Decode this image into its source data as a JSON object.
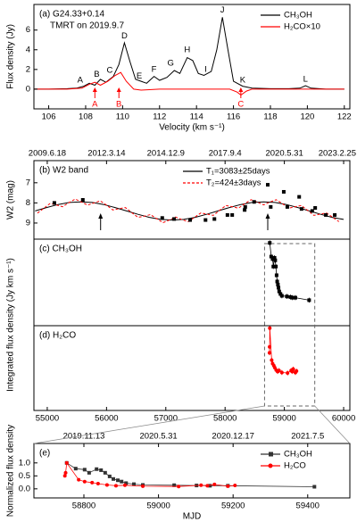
{
  "chart_data": [
    {
      "type": "line",
      "title": "(a) G24.33+0.14",
      "subtitle": "TMRT on 2019.9.7",
      "xlabel": "Velocity (km s⁻¹)",
      "ylabel": "Flux density (Jy)",
      "xlim": [
        105.2,
        122.3
      ],
      "xticks": [
        106,
        108,
        110,
        112,
        114,
        116,
        118,
        120,
        122
      ],
      "ylim": [
        -2,
        8.6
      ],
      "yticks": [
        0,
        2,
        4,
        6
      ],
      "legend": "upper right",
      "series": [
        {
          "name": "CH₃OH",
          "color": "#000000",
          "x": [
            105,
            106,
            107,
            107.5,
            107.9,
            108.2,
            108.5,
            108.8,
            109.1,
            109.5,
            109.8,
            110.1,
            110.4,
            110.7,
            111.0,
            111.3,
            111.7,
            112.0,
            112.4,
            112.8,
            113.1,
            113.5,
            113.8,
            114.1,
            114.4,
            114.8,
            115.1,
            115.4,
            115.7,
            116.0,
            116.5,
            117,
            118,
            119,
            119.6,
            119.9,
            120.2,
            121,
            122
          ],
          "values": [
            0,
            0,
            0.05,
            0.1,
            0.3,
            0.6,
            0.4,
            1.0,
            0.7,
            1.3,
            2.5,
            4.7,
            2.8,
            1.0,
            0.8,
            0.6,
            1.3,
            0.9,
            1.2,
            1.9,
            1.6,
            3.2,
            2.9,
            1.6,
            1.4,
            1.8,
            4.0,
            7.3,
            4.0,
            0.8,
            0.3,
            0.1,
            0.05,
            0.05,
            0.1,
            0.35,
            0.1,
            0,
            0
          ]
        },
        {
          "name": "H₂CO×10",
          "color": "#ff0000",
          "x": [
            105,
            106,
            107,
            107.8,
            108.2,
            108.5,
            108.8,
            109.2,
            109.6,
            109.9,
            110.2,
            110.6,
            111,
            112,
            113,
            114,
            115,
            115.8,
            116.2,
            116.4,
            116.7,
            117,
            118,
            120,
            122
          ],
          "values": [
            0,
            0,
            0,
            0.1,
            0.5,
            0.7,
            0.4,
            0.8,
            1.4,
            1.7,
            0.8,
            0,
            -0.1,
            0,
            0,
            0,
            0,
            0,
            -0.3,
            -0.6,
            -0.2,
            0,
            0,
            0,
            0
          ]
        }
      ],
      "peak_labels": [
        "A",
        "B",
        "C",
        "D",
        "E",
        "F",
        "G",
        "H",
        "I",
        "J",
        "K",
        "L"
      ],
      "h2co_labels": [
        "A",
        "B",
        "C"
      ]
    },
    {
      "type": "scatter",
      "title": "(b) W2 band",
      "ylabel": "W2 (mag)",
      "xlim": [
        54775,
        60105
      ],
      "x2ticks": [
        {
          "value": 55000,
          "label": "2009.6.18"
        },
        {
          "value": 56000,
          "label": "2012.3.14"
        },
        {
          "value": 57000,
          "label": "2014.12.9"
        },
        {
          "value": 58000,
          "label": "2017.9.4"
        },
        {
          "value": 59000,
          "label": "2020.5.31"
        },
        {
          "value": 60000,
          "label": "2023.2.25"
        }
      ],
      "ylim": [
        9.8,
        5.9
      ],
      "yticks": [
        7,
        8,
        9
      ],
      "legend": "upper center",
      "points": {
        "color": "#000000",
        "x": [
          55120,
          55600,
          56940,
          57140,
          57410,
          57670,
          57820,
          58040,
          58120,
          58330,
          58340,
          58490,
          58720,
          58770,
          58990,
          59050,
          59250,
          59290,
          59470,
          59520,
          59700,
          59850
        ],
        "values": [
          8.0,
          7.85,
          8.75,
          8.8,
          8.85,
          8.85,
          8.8,
          8.6,
          8.6,
          8.35,
          8.2,
          7.95,
          7.1,
          8.2,
          7.45,
          8.2,
          7.7,
          8.3,
          8.4,
          8.25,
          8.6,
          8.6
        ]
      },
      "arrows": [
        55900,
        58720
      ],
      "series": [
        {
          "name": "T₁=3083±25days",
          "color": "#000000",
          "dash": false,
          "x": [
            54796,
            54989,
            55181,
            55374,
            55567,
            55760,
            55952,
            56145,
            56338,
            56530,
            56723,
            56916,
            57108,
            57301,
            57494,
            57687,
            57879,
            58072,
            58265,
            58457,
            58650,
            58843,
            59035,
            59228,
            59421,
            59614,
            59806,
            59999
          ],
          "values": [
            8.4,
            8.23,
            8.08,
            7.98,
            7.95,
            7.98,
            8.08,
            8.23,
            8.4,
            8.57,
            8.72,
            8.82,
            8.85,
            8.82,
            8.72,
            8.57,
            8.4,
            8.23,
            8.08,
            7.98,
            7.95,
            7.98,
            8.08,
            8.23,
            8.4,
            8.57,
            8.72,
            8.82
          ]
        },
        {
          "name": "T₂=424±3days",
          "color": "#ff0000",
          "dash": true,
          "x": [
            54834,
            54940,
            55046,
            55152,
            55258,
            55364,
            55470,
            55576,
            55682,
            55788,
            55894,
            56000,
            56106,
            56212,
            56318,
            56424,
            56530,
            56636,
            56742,
            56848,
            56954,
            57060,
            57166,
            57272,
            57378,
            57484,
            57590,
            57696,
            57802,
            57908,
            58014,
            58120,
            58226,
            58332,
            58438,
            58544,
            58650,
            58756,
            58862,
            58968,
            59074,
            59180,
            59286,
            59392,
            59498,
            59604,
            59710,
            59816,
            59922
          ],
          "values": [
            8.51,
            8.27,
            8.03,
            8.1,
            8.19,
            7.99,
            7.81,
            7.95,
            8.11,
            8.0,
            7.9,
            8.11,
            8.35,
            8.29,
            8.23,
            8.48,
            8.72,
            8.66,
            8.58,
            8.79,
            8.98,
            8.85,
            8.7,
            8.83,
            8.93,
            8.72,
            8.5,
            8.56,
            8.62,
            8.37,
            8.13,
            8.19,
            8.26,
            8.04,
            7.84,
            7.96,
            8.1,
            7.96,
            7.84,
            8.04,
            8.26,
            8.19,
            8.13,
            8.37,
            8.62,
            8.56,
            8.5,
            8.72,
            8.93
          ]
        }
      ]
    },
    {
      "type": "errorbar",
      "title": "(c) CH₃OH",
      "ylabel": "Integrated flux density (Jy km s⁻¹)",
      "xlim": [
        54775,
        60105
      ],
      "ylim": [
        -0.33,
        1.06
      ],
      "series": [
        {
          "color": "#000000",
          "marker": "square",
          "x": [
            58754,
            58778,
            58802,
            58814,
            58834,
            58846,
            58857,
            58869,
            58879,
            58891,
            58901,
            58913,
            58934,
            58958,
            59042,
            59102,
            59138,
            59186,
            59418
          ],
          "values": [
            1.0,
            0.78,
            0.74,
            0.62,
            0.76,
            0.72,
            0.62,
            0.48,
            0.38,
            0.33,
            0.28,
            0.22,
            0.18,
            0.15,
            0.14,
            0.13,
            0.12,
            0.12,
            0.08
          ],
          "errors": [
            0.04,
            0.04,
            0.04,
            0.04,
            0.04,
            0.04,
            0.04,
            0.04,
            0.04,
            0.04,
            0.04,
            0.04,
            0.04,
            0.04,
            0.04,
            0.04,
            0.04,
            0.04,
            0.04
          ]
        }
      ]
    },
    {
      "type": "errorbar",
      "title": "(d) H₂CO",
      "xlim": [
        54775,
        60105
      ],
      "xticks": [
        55000,
        56000,
        57000,
        58000,
        59000,
        60000
      ],
      "ylim": [
        -0.67,
        1.05
      ],
      "series": [
        {
          "color": "#ff0000",
          "marker": "circle",
          "x": [
            58749,
            58751,
            58754,
            58786,
            58802,
            58822,
            58838,
            58862,
            58886,
            58910,
            58958,
            59054,
            59114,
            59131,
            59150,
            59186,
            59205
          ],
          "values": [
            0.5,
            0.62,
            1.0,
            0.35,
            0.28,
            0.24,
            0.2,
            0.15,
            0.12,
            0.14,
            0.1,
            0.09,
            0.14,
            0.12,
            0.17,
            0.1,
            0.13
          ],
          "errors": [
            0.05,
            0.05,
            0.05,
            0.05,
            0.05,
            0.05,
            0.05,
            0.05,
            0.05,
            0.05,
            0.05,
            0.05,
            0.05,
            0.05,
            0.05,
            0.05,
            0.05
          ]
        }
      ]
    },
    {
      "type": "errorbar",
      "title": "(e)",
      "xlabel": "MJD",
      "ylabel": "Normalized flux density",
      "xlim": [
        58666,
        59513
      ],
      "xticks": [
        58800,
        59000,
        59200,
        59400
      ],
      "x2ticks": [
        {
          "value": 58800,
          "label": "2019.11.13"
        },
        {
          "value": 59000,
          "label": "2020.5.31"
        },
        {
          "value": 59200,
          "label": "2020.12.17"
        },
        {
          "value": 59400,
          "label": "2021.7.5"
        }
      ],
      "ylim": [
        -0.35,
        1.75
      ],
      "yticks": [
        {
          "value": 0,
          "label": "0.0"
        },
        {
          "value": 0.5,
          "label": "0.5"
        },
        {
          "value": 1,
          "label": "1.0"
        }
      ],
      "legend": "upper right",
      "series": [
        {
          "name": "CH₃OH",
          "color": "#333333",
          "marker": "square",
          "x": [
            58754,
            58778,
            58802,
            58814,
            58834,
            58846,
            58857,
            58869,
            58879,
            58891,
            58901,
            58913,
            58934,
            58958,
            59042,
            59102,
            59138,
            59186,
            59418
          ],
          "values": [
            1.0,
            0.78,
            0.74,
            0.62,
            0.76,
            0.72,
            0.62,
            0.48,
            0.38,
            0.33,
            0.28,
            0.22,
            0.18,
            0.15,
            0.14,
            0.13,
            0.12,
            0.12,
            0.08
          ],
          "errors": [
            0.04,
            0.04,
            0.04,
            0.04,
            0.04,
            0.04,
            0.04,
            0.04,
            0.04,
            0.04,
            0.04,
            0.04,
            0.04,
            0.04,
            0.04,
            0.04,
            0.04,
            0.04,
            0.04
          ]
        },
        {
          "name": "H₂CO",
          "color": "#ff0000",
          "marker": "circle",
          "x": [
            58749,
            58751,
            58754,
            58786,
            58802,
            58822,
            58838,
            58862,
            58886,
            58910,
            58958,
            59054,
            59114,
            59131,
            59150,
            59186,
            59205
          ],
          "values": [
            0.5,
            0.62,
            1.0,
            0.35,
            0.28,
            0.24,
            0.2,
            0.15,
            0.12,
            0.14,
            0.1,
            0.09,
            0.14,
            0.12,
            0.17,
            0.1,
            0.13
          ],
          "errors": [
            0.05,
            0.05,
            0.05,
            0.05,
            0.05,
            0.05,
            0.05,
            0.05,
            0.05,
            0.05,
            0.05,
            0.05,
            0.05,
            0.05,
            0.05,
            0.05,
            0.05
          ]
        }
      ]
    }
  ]
}
